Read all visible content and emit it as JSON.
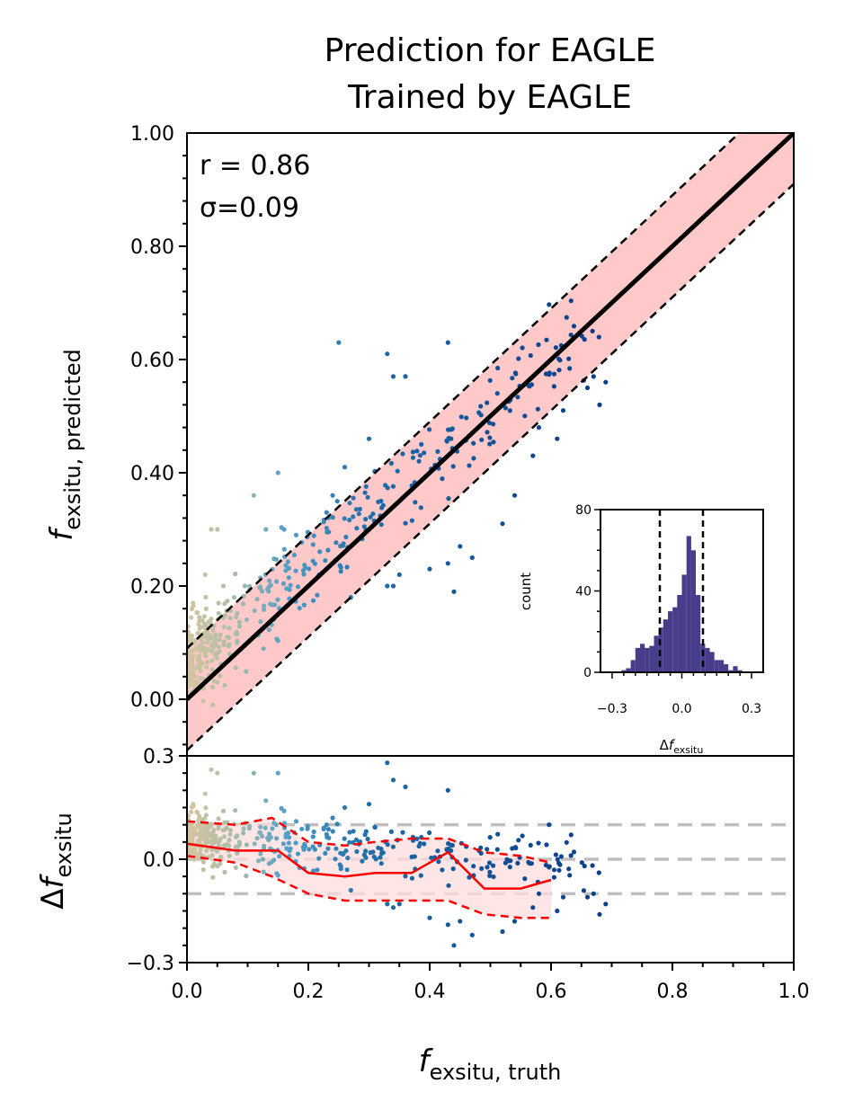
{
  "title_line1": "Prediction for EAGLE",
  "title_line2": "Trained by EAGLE",
  "stats": {
    "r": "r = 0.86",
    "sigma": "σ=0.09"
  },
  "colors": {
    "band": "#ffc9c9",
    "running": "#ff0000",
    "grey": "#bfbfbf",
    "hist": "#483d8b",
    "identity": "#000000"
  },
  "chart_data": [
    {
      "type": "scatter",
      "panel": "main",
      "title": "Prediction for EAGLE / Trained by EAGLE",
      "xlabel": "f_exsitu, truth",
      "ylabel": "f_exsitu, predicted",
      "ylim": [
        -0.08,
        1.0
      ],
      "xlim": [
        0.0,
        1.0
      ],
      "yticks": [
        "0.00",
        "0.20",
        "0.40",
        "0.60",
        "0.80",
        "1.00"
      ],
      "identity_line": "y = x",
      "band_halfwidth": 0.09,
      "r": 0.86,
      "sigma": 0.09,
      "outliers": [
        [
          0.25,
          0.63
        ],
        [
          0.33,
          0.61
        ],
        [
          0.43,
          0.63
        ],
        [
          0.36,
          0.57
        ],
        [
          0.34,
          0.57
        ],
        [
          0.3,
          0.46
        ],
        [
          0.15,
          0.4
        ],
        [
          0.13,
          0.3
        ],
        [
          0.16,
          0.3
        ],
        [
          0.05,
          0.3
        ],
        [
          0.18,
          0.29
        ],
        [
          0.11,
          0.36
        ],
        [
          0.03,
          0.22
        ],
        [
          0.04,
          0.3
        ],
        [
          0.33,
          0.2
        ],
        [
          0.34,
          0.2
        ],
        [
          0.27,
          0.18
        ],
        [
          0.35,
          0.22
        ],
        [
          0.4,
          0.23
        ],
        [
          0.47,
          0.25
        ],
        [
          0.43,
          0.24
        ],
        [
          0.44,
          0.19
        ],
        [
          0.45,
          0.27
        ],
        [
          0.52,
          0.31
        ],
        [
          0.54,
          0.36
        ],
        [
          0.57,
          0.43
        ],
        [
          0.58,
          0.48
        ],
        [
          0.61,
          0.46
        ],
        [
          0.62,
          0.51
        ],
        [
          0.66,
          0.55
        ],
        [
          0.67,
          0.57
        ],
        [
          0.69,
          0.56
        ],
        [
          0.68,
          0.52
        ],
        [
          0.26,
          0.41
        ],
        [
          0.24,
          0.36
        ],
        [
          0.23,
          0.33
        ],
        [
          0.32,
          0.35
        ],
        [
          0.07,
          0.08
        ],
        [
          0.06,
          0.2
        ],
        [
          0.01,
          0.17
        ]
      ]
    },
    {
      "type": "scatter",
      "panel": "residual",
      "ylabel": "Δf_exsitu",
      "ylim": [
        -0.3,
        0.3
      ],
      "yticks": [
        "−0.3",
        "0.0",
        "0.3"
      ],
      "xticks": [
        "0.0",
        "0.2",
        "0.4",
        "0.6",
        "0.8",
        "1.0"
      ],
      "grey_lines": [
        -0.1,
        0.0,
        0.1
      ],
      "running_median": {
        "x": [
          0.0,
          0.08,
          0.15,
          0.2,
          0.26,
          0.31,
          0.37,
          0.43,
          0.49,
          0.55,
          0.6
        ],
        "y": [
          0.045,
          0.025,
          0.025,
          -0.04,
          -0.05,
          -0.04,
          -0.04,
          0.02,
          -0.085,
          -0.085,
          -0.06
        ]
      },
      "upper_band": {
        "x": [
          0.0,
          0.08,
          0.14,
          0.2,
          0.26,
          0.31,
          0.37,
          0.43,
          0.49,
          0.55,
          0.6
        ],
        "y": [
          0.11,
          0.1,
          0.12,
          0.05,
          0.04,
          0.05,
          0.06,
          0.06,
          0.02,
          0.01,
          -0.01
        ]
      },
      "lower_band": {
        "x": [
          0.0,
          0.08,
          0.14,
          0.2,
          0.26,
          0.31,
          0.37,
          0.43,
          0.49,
          0.55,
          0.6
        ],
        "y": [
          0.01,
          -0.01,
          -0.05,
          -0.1,
          -0.12,
          -0.12,
          -0.12,
          -0.12,
          -0.16,
          -0.17,
          -0.17
        ]
      }
    },
    {
      "type": "bar",
      "panel": "inset-histogram",
      "xlabel": "Δf_exsitu",
      "ylabel": "count",
      "xlim": [
        -0.35,
        0.35
      ],
      "ylim": [
        0,
        80
      ],
      "yticks": [
        "0",
        "40",
        "80"
      ],
      "xticks": [
        "−0.3",
        "0.0",
        "0.3"
      ],
      "bin_width": 0.02,
      "bin_centers": [
        -0.25,
        -0.23,
        -0.21,
        -0.19,
        -0.17,
        -0.15,
        -0.13,
        -0.11,
        -0.09,
        -0.07,
        -0.05,
        -0.03,
        -0.01,
        0.01,
        0.03,
        0.05,
        0.07,
        0.09,
        0.11,
        0.13,
        0.15,
        0.17,
        0.19,
        0.21,
        0.23,
        0.25
      ],
      "counts": [
        1,
        2,
        6,
        12,
        14,
        12,
        13,
        18,
        22,
        26,
        30,
        32,
        38,
        48,
        67,
        60,
        38,
        14,
        12,
        10,
        6,
        6,
        4,
        1,
        3,
        1
      ],
      "sigma_lines": [
        -0.09,
        0.09
      ]
    }
  ]
}
